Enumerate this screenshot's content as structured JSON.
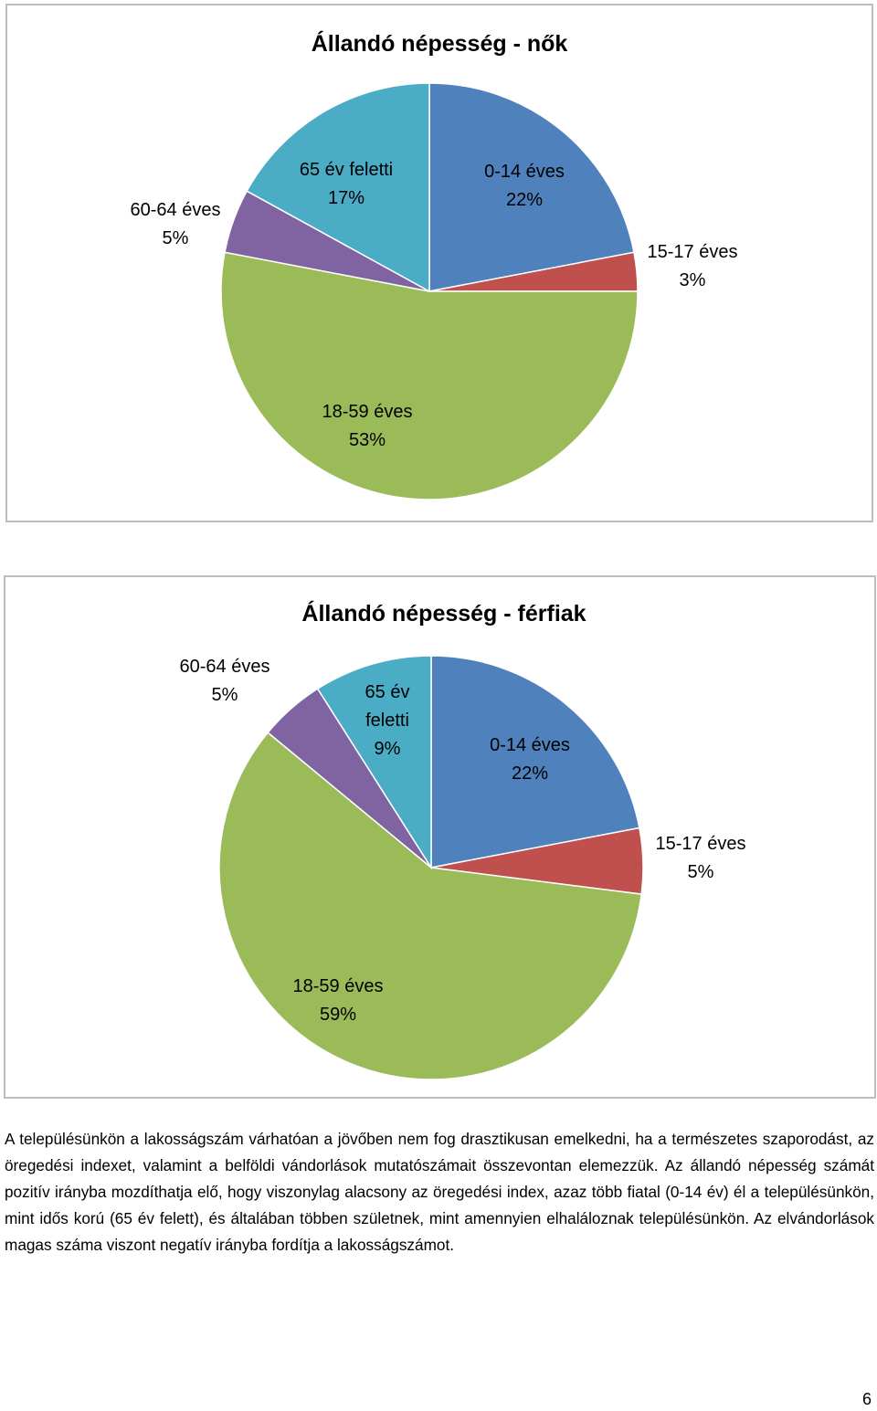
{
  "colors": {
    "0-14": "#4f81bd",
    "15-17": "#c0504d",
    "18-59": "#9bbb59",
    "60-64": "#8064a2",
    "65+": "#4bacc6"
  },
  "chart_data": [
    {
      "type": "pie",
      "title": "Állandó népesség - nők",
      "labels": [
        "0-14 éves",
        "15-17 éves",
        "18-59 éves",
        "60-64 éves",
        "65 év feletti"
      ],
      "values": [
        22,
        3,
        53,
        5,
        17
      ],
      "value_labels": [
        "22%",
        "3%",
        "53%",
        "5%",
        "17%"
      ],
      "start": "12 o'clock, clockwise",
      "legend": "none"
    },
    {
      "type": "pie",
      "title": "Állandó népesség - férfiak",
      "labels": [
        "0-14 éves",
        "15-17 éves",
        "18-59 éves",
        "60-64 éves",
        "65 év feletti"
      ],
      "values": [
        22,
        5,
        59,
        5,
        9
      ],
      "value_labels": [
        "22%",
        "5%",
        "59%",
        "5%",
        "9%"
      ],
      "start": "12 o'clock, clockwise",
      "legend": "none"
    }
  ],
  "text": {
    "paragraph": "A településünkön a lakosságszám várhatóan a jövőben nem fog drasztikusan emelkedni, ha a természetes szaporodást, az öregedési indexet, valamint a belföldi vándorlások mutatószámait összevontan elemezzük. Az állandó népesség számát pozitív irányba mozdíthatja elő, hogy viszonylag alacsony az öregedési index, azaz több fiatal (0-14 év) él a településünkön, mint idős korú (65 év felett), és általában többen születnek, mint amennyien elhaláloznak településünkön. Az elvándorlások magas száma viszont negatív irányba fordítja a lakosságszámot.",
    "page_number": "6"
  }
}
